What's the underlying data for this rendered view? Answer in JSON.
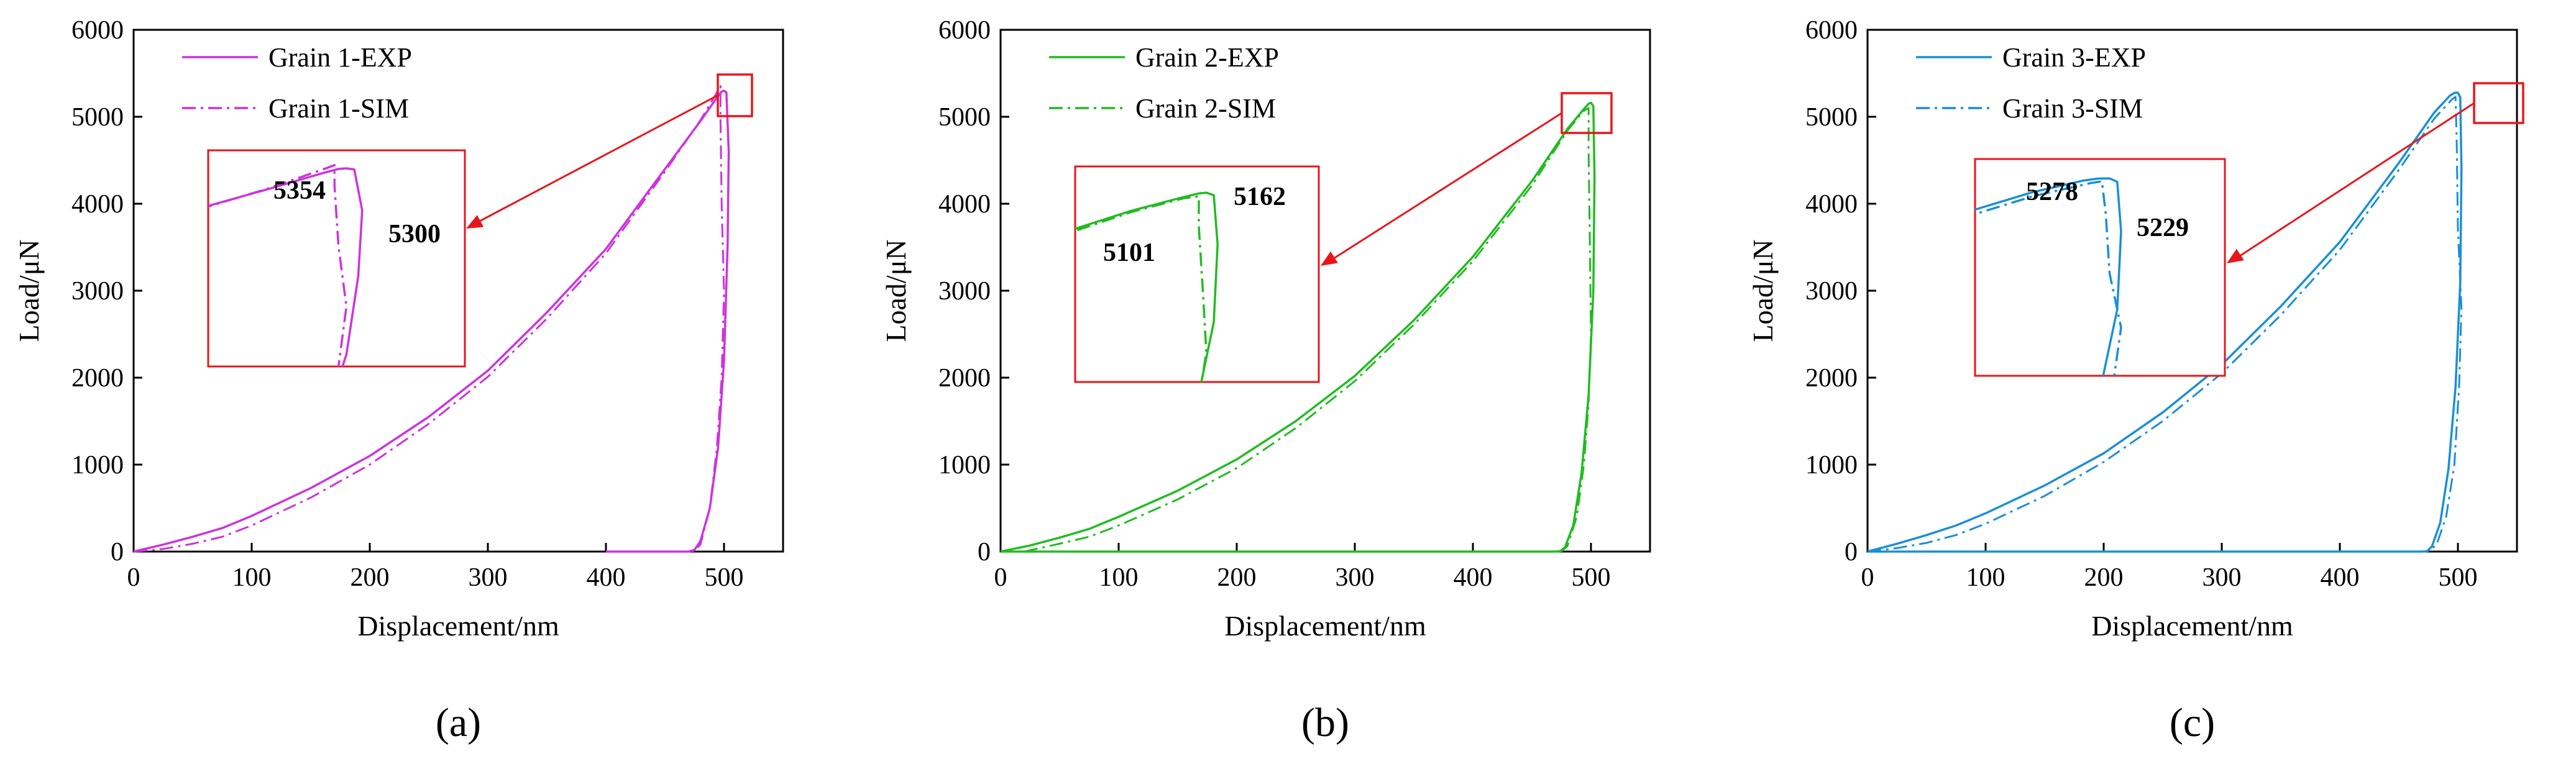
{
  "panels": [
    {
      "label": "(a)",
      "sub": "a"
    },
    {
      "label": "(b)",
      "sub": "b"
    },
    {
      "label": "(c)",
      "sub": "c"
    }
  ],
  "colors": {
    "a": "#cc33dd",
    "b": "#22bb22",
    "c": "#1a8fd6",
    "highlight": "#e8161b"
  },
  "chart_data": [
    {
      "type": "line",
      "panel_label": "(a)",
      "xlabel": "Displacement/nm",
      "ylabel": "Load/μN",
      "xlim": [
        0,
        550
      ],
      "ylim": [
        0,
        6000
      ],
      "xticks": [
        0,
        100,
        200,
        300,
        400,
        500
      ],
      "yticks": [
        0,
        1000,
        2000,
        3000,
        4000,
        5000,
        6000
      ],
      "legend_position": "top-left",
      "color": "#cc33dd",
      "series": [
        {
          "name": "Grain 1-EXP",
          "style": "solid",
          "x": [
            0,
            25,
            50,
            75,
            100,
            150,
            200,
            250,
            300,
            350,
            400,
            450,
            480,
            494,
            498,
            500,
            502,
            504,
            503,
            500,
            495,
            488,
            480,
            475,
            470,
            460,
            400
          ],
          "y": [
            0,
            80,
            170,
            270,
            410,
            730,
            1100,
            1550,
            2080,
            2750,
            3480,
            4400,
            4950,
            5220,
            5290,
            5300,
            5280,
            4600,
            3500,
            2200,
            1200,
            500,
            120,
            20,
            0,
            0,
            0
          ]
        },
        {
          "name": "Grain 1-SIM",
          "style": "dashdot",
          "x": [
            0,
            25,
            50,
            75,
            100,
            150,
            200,
            250,
            300,
            350,
            400,
            450,
            480,
            494,
            497,
            497,
            498,
            500,
            498,
            494,
            488,
            480,
            475,
            470,
            450,
            400
          ],
          "y": [
            0,
            30,
            90,
            170,
            300,
            620,
            1000,
            1470,
            2010,
            2680,
            3430,
            4370,
            4960,
            5280,
            5354,
            5000,
            4000,
            3000,
            2000,
            1200,
            500,
            80,
            10,
            0,
            0,
            0
          ]
        }
      ],
      "inset": {
        "annotations": [
          "5354",
          "5300"
        ]
      }
    },
    {
      "type": "line",
      "panel_label": "(b)",
      "xlabel": "Displacement/nm",
      "ylabel": "Load/μN",
      "xlim": [
        0,
        550
      ],
      "ylim": [
        0,
        6000
      ],
      "xticks": [
        0,
        100,
        200,
        300,
        400,
        500
      ],
      "yticks": [
        0,
        1000,
        2000,
        3000,
        4000,
        5000,
        6000
      ],
      "legend_position": "top-left",
      "color": "#22bb22",
      "series": [
        {
          "name": "Grain 2-EXP",
          "style": "solid",
          "x": [
            0,
            25,
            50,
            75,
            100,
            150,
            200,
            250,
            300,
            350,
            400,
            450,
            480,
            494,
            498,
            500,
            502,
            503,
            502,
            498,
            492,
            485,
            478,
            474,
            470,
            400,
            0
          ],
          "y": [
            0,
            70,
            160,
            260,
            400,
            700,
            1060,
            1500,
            2020,
            2660,
            3390,
            4260,
            4860,
            5090,
            5150,
            5162,
            5120,
            4300,
            3000,
            1800,
            900,
            300,
            50,
            5,
            0,
            0,
            0
          ]
        },
        {
          "name": "Grain 2-SIM",
          "style": "dashdot",
          "x": [
            20,
            50,
            75,
            100,
            150,
            200,
            250,
            300,
            350,
            400,
            450,
            480,
            494,
            498,
            498,
            499,
            500,
            498,
            494,
            488,
            480,
            475,
            470,
            400,
            0
          ],
          "y": [
            0,
            90,
            170,
            300,
            600,
            960,
            1420,
            1960,
            2610,
            3340,
            4210,
            4840,
            5070,
            5101,
            4600,
            3600,
            2500,
            1700,
            1000,
            400,
            60,
            5,
            0,
            0,
            0
          ]
        }
      ],
      "inset": {
        "annotations": [
          "5101",
          "5162"
        ]
      }
    },
    {
      "type": "line",
      "panel_label": "(c)",
      "xlabel": "Displacement/nm",
      "ylabel": "Load/μN",
      "xlim": [
        0,
        550
      ],
      "ylim": [
        0,
        6000
      ],
      "xticks": [
        0,
        100,
        200,
        300,
        400,
        500
      ],
      "yticks": [
        0,
        1000,
        2000,
        3000,
        4000,
        5000,
        6000
      ],
      "legend_position": "top-left",
      "color": "#1a8fd6",
      "series": [
        {
          "name": "Grain 3-EXP",
          "style": "solid",
          "x": [
            0,
            25,
            50,
            75,
            100,
            150,
            200,
            250,
            300,
            350,
            400,
            450,
            480,
            493,
            497,
            500,
            502,
            503,
            502,
            498,
            492,
            485,
            478,
            474,
            470,
            400,
            0
          ],
          "y": [
            0,
            90,
            190,
            300,
            440,
            760,
            1130,
            1600,
            2150,
            2820,
            3560,
            4470,
            5050,
            5240,
            5275,
            5278,
            5220,
            4400,
            3100,
            1900,
            950,
            330,
            60,
            5,
            0,
            0,
            0
          ]
        },
        {
          "name": "Grain 3-SIM",
          "style": "dashdot",
          "x": [
            0,
            25,
            50,
            75,
            100,
            150,
            200,
            250,
            300,
            350,
            400,
            450,
            480,
            495,
            498,
            499,
            500,
            503,
            501,
            497,
            490,
            482,
            476,
            470,
            400,
            0
          ],
          "y": [
            0,
            40,
            100,
            190,
            320,
            640,
            1030,
            1500,
            2050,
            2720,
            3470,
            4390,
            4980,
            5200,
            5229,
            4700,
            3700,
            2800,
            1900,
            1000,
            400,
            80,
            10,
            0,
            0,
            0
          ]
        }
      ],
      "inset": {
        "annotations": [
          "5278",
          "5229"
        ]
      }
    }
  ]
}
